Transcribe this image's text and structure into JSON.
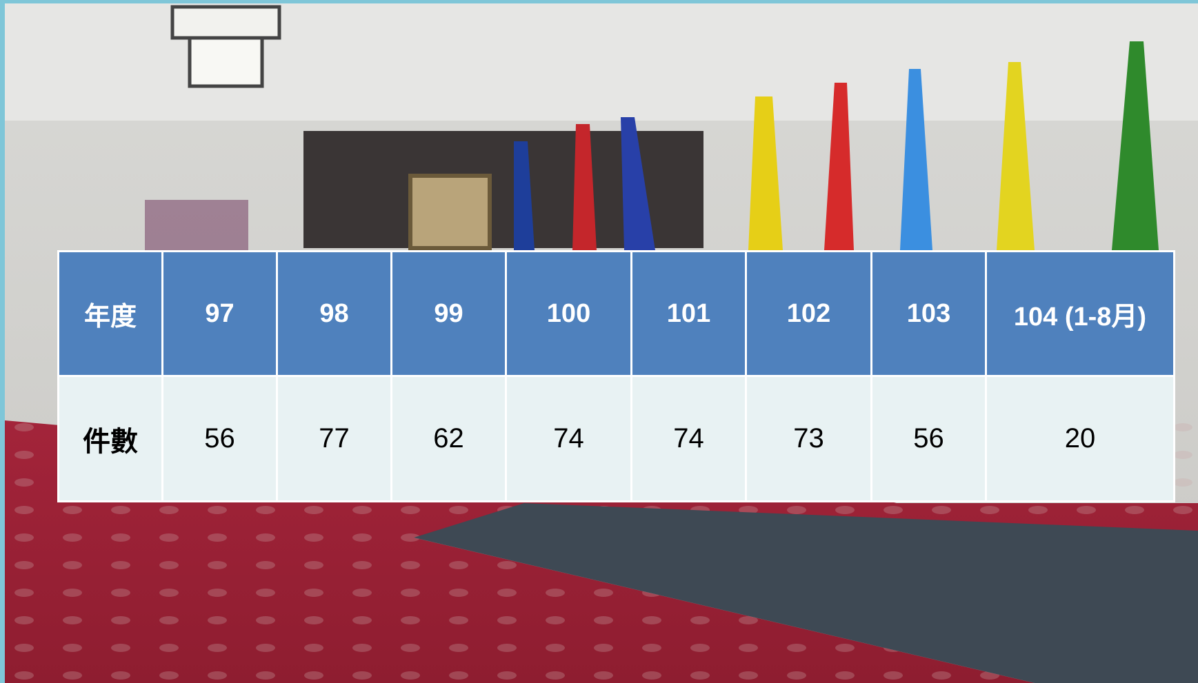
{
  "table": {
    "header": [
      "年度",
      "97",
      "98",
      "99",
      "100",
      "101",
      "102",
      "103",
      "104 (1-8月)"
    ],
    "rows": [
      [
        "件數",
        "56",
        "77",
        "62",
        "74",
        "74",
        "73",
        "56",
        "20"
      ]
    ]
  }
}
